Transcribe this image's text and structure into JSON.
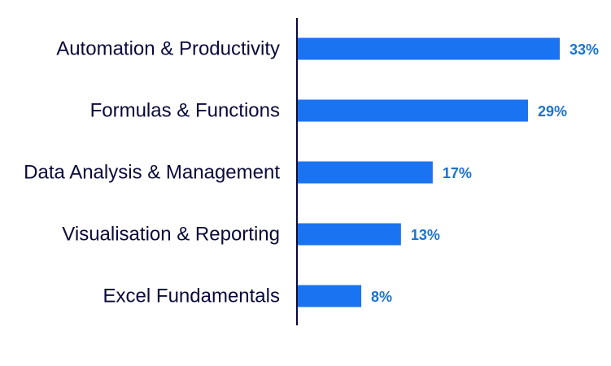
{
  "chart_data": {
    "type": "bar",
    "orientation": "horizontal",
    "categories": [
      "Automation & Productivity",
      "Formulas & Functions",
      "Data Analysis & Management",
      "Visualisation & Reporting",
      "Excel Fundamentals"
    ],
    "values": [
      33,
      29,
      17,
      13,
      8
    ],
    "value_labels": [
      "33%",
      "29%",
      "17%",
      "13%",
      "8%"
    ],
    "unit": "%",
    "xlim": [
      0,
      35
    ],
    "grid": false,
    "legend": "none",
    "colors": {
      "bar": "#1a73f0",
      "value_label": "#1a73d0",
      "category_label": "#0a0a3a",
      "axis": "#0a0a3a"
    }
  }
}
